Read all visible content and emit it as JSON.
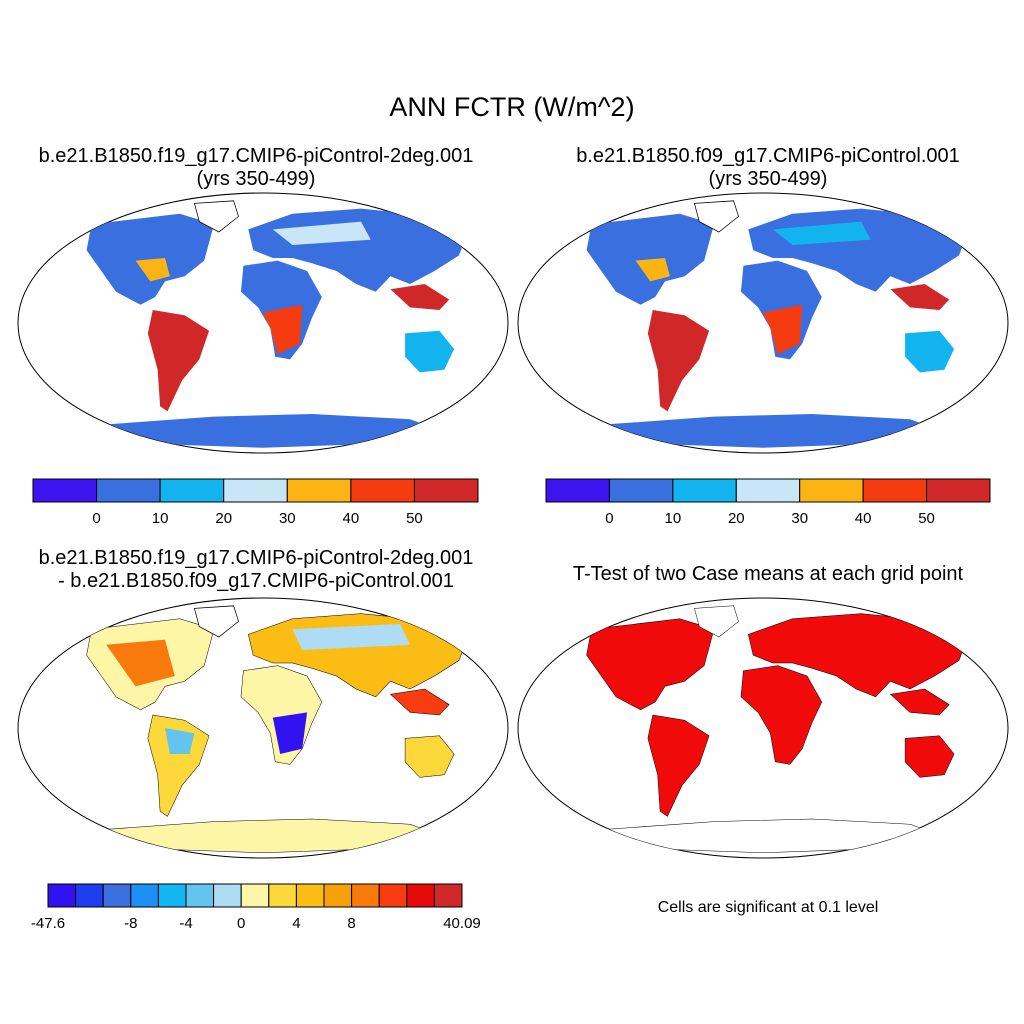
{
  "title": "ANN FCTR (W/m^2)",
  "panels": [
    {
      "id": "case1",
      "title_line1": "b.e21.B1850.f19_g17.CMIP6-piControl-2deg.001",
      "title_line2": "(yrs 350-499)"
    },
    {
      "id": "case2",
      "title_line1": "b.e21.B1850.f09_g17.CMIP6-piControl.001",
      "title_line2": "(yrs 350-499)"
    },
    {
      "id": "diff",
      "title_line1": "b.e21.B1850.f19_g17.CMIP6-piControl-2deg.001",
      "title_line2": "- b.e21.B1850.f09_g17.CMIP6-piControl.001"
    },
    {
      "id": "ttest",
      "title_line1": "T-Test of two Case means at each grid point",
      "note": "Cells are significant at 0.1 level"
    }
  ],
  "colorbar_abs": {
    "colors": [
      "#3b14f0",
      "#3a6fe0",
      "#12b4f0",
      "#c8e6f6",
      "#fbb414",
      "#f53c10",
      "#d02828"
    ],
    "labels": [
      "0",
      "10",
      "20",
      "30",
      "40",
      "50"
    ]
  },
  "colorbar_diff": {
    "colors": [
      "#3312f2",
      "#1f3ef0",
      "#3d6ee0",
      "#1e90f5",
      "#12b6f2",
      "#64c4f0",
      "#aedcf4",
      "#fdf6a6",
      "#fcd83a",
      "#fbbd14",
      "#f7a10a",
      "#f8790c",
      "#f63c10",
      "#e60a0a",
      "#d02828"
    ],
    "labels": [
      "-47.6",
      "-8",
      "-4",
      "0",
      "4",
      "8",
      "40.09"
    ]
  },
  "regions": {
    "north_america": {
      "abs": "blue",
      "diff": "mixed-warm"
    },
    "south_america": {
      "abs": "dark-red",
      "diff": "mixed"
    },
    "africa_south": {
      "abs": "red-orange",
      "diff": "mixed-blue"
    },
    "antarctica": {
      "abs": "blue",
      "diff": "pale-yellow"
    },
    "southeast_asia": {
      "abs": "dark-red",
      "diff": "mixed-warm"
    }
  }
}
